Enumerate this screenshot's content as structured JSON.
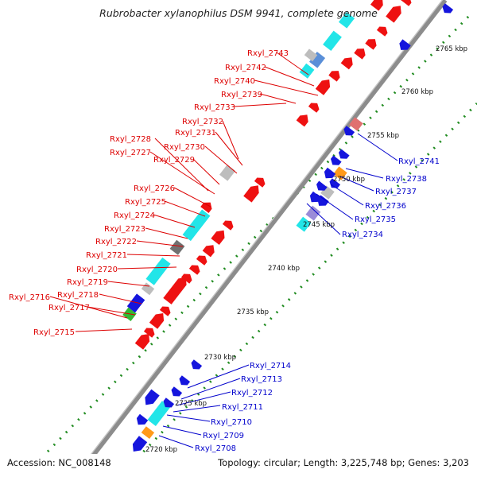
{
  "title": "Rubrobacter xylanophilus DSM 9941, complete genome",
  "accession_text": "Accession: NC_008148",
  "topology_text": "Topology: circular; Length: 3,225,748 bp; Genes: 3,203",
  "colors": {
    "backbone": "#999999",
    "forward_label": "#dd0000",
    "reverse_label": "#0000cc",
    "gc_dots": "#228b22"
  },
  "ruler": [
    {
      "label": "2720 kbp"
    },
    {
      "label": "2725 kbp"
    },
    {
      "label": "2730 kbp"
    },
    {
      "label": "2735 kbp"
    },
    {
      "label": "2740 kbp"
    },
    {
      "label": "2745 kbp"
    },
    {
      "label": "2750 kbp"
    },
    {
      "label": "2755 kbp"
    },
    {
      "label": "2760 kbp"
    },
    {
      "label": "2765 kbp"
    }
  ],
  "forward_labels": [
    "Rxyl_2743",
    "Rxyl_2742",
    "Rxyl_2740",
    "Rxyl_2739",
    "Rxyl_2733",
    "Rxyl_2732",
    "Rxyl_2731",
    "Rxyl_2728",
    "Rxyl_2730",
    "Rxyl_2727",
    "Rxyl_2729",
    "Rxyl_2726",
    "Rxyl_2725",
    "Rxyl_2724",
    "Rxyl_2723",
    "Rxyl_2722",
    "Rxyl_2721",
    "Rxyl_2720",
    "Rxyl_2719",
    "Rxyl_2718",
    "Rxyl_2716",
    "Rxyl_2717",
    "Rxyl_2715"
  ],
  "reverse_labels": [
    "Rxyl_2741",
    "Rxyl_2738",
    "Rxyl_2737",
    "Rxyl_2736",
    "Rxyl_2735",
    "Rxyl_2734",
    "Rxyl_2714",
    "Rxyl_2713",
    "Rxyl_2712",
    "Rxyl_2711",
    "Rxyl_2710",
    "Rxyl_2709",
    "Rxyl_2708"
  ]
}
